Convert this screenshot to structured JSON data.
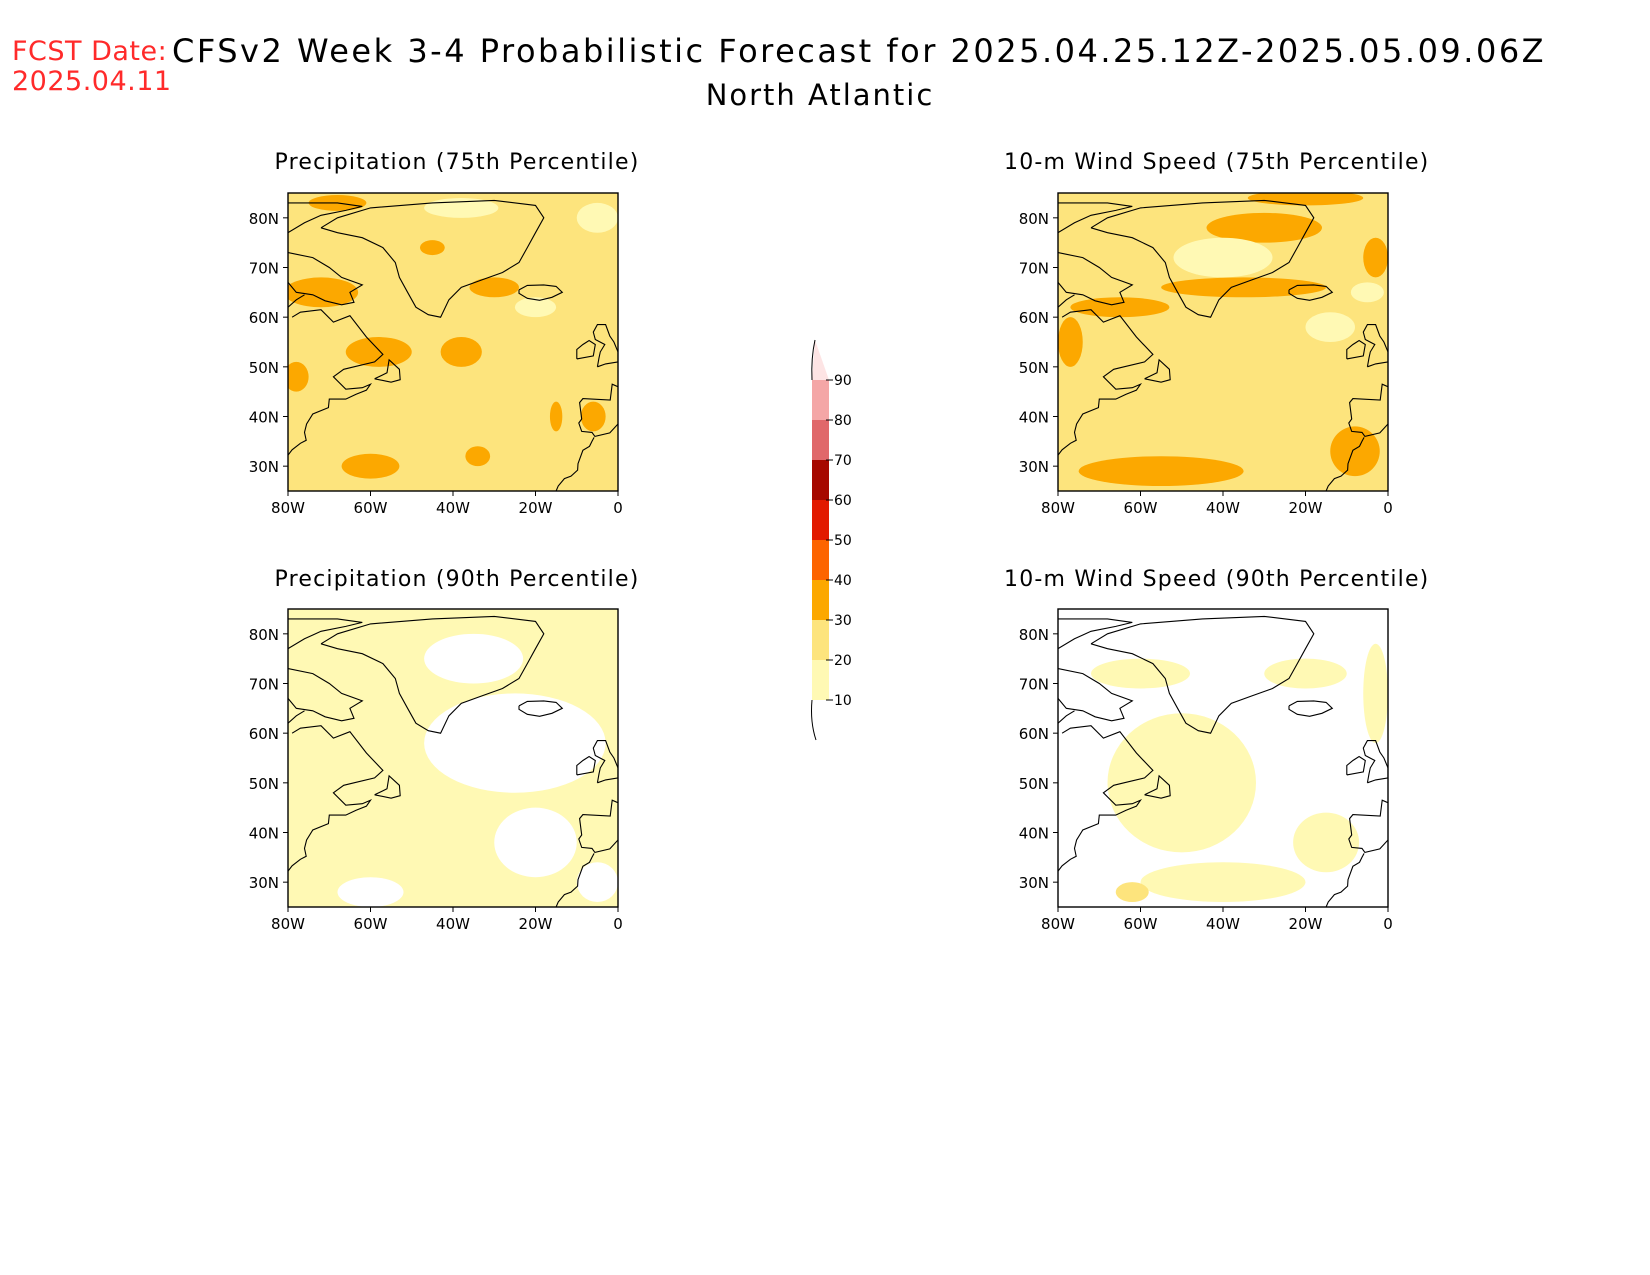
{
  "header": {
    "fcst_label": "FCST Date:",
    "fcst_date": "2025.04.11",
    "title": "CFSv2 Week 3-4 Probabilistic Forecast for 2025.04.25.12Z-2025.05.09.06Z",
    "region": "North Atlantic"
  },
  "panels": [
    {
      "title": "Precipitation (75th Percentile)",
      "base_level": 20,
      "blobs": [
        {
          "lon": -68,
          "lat": 83,
          "rx": 7,
          "ry": 1.6,
          "level": 30
        },
        {
          "lon": -72,
          "lat": 65,
          "rx": 9,
          "ry": 3,
          "level": 30
        },
        {
          "lon": -58,
          "lat": 53,
          "rx": 8,
          "ry": 3,
          "level": 30
        },
        {
          "lon": -38,
          "lat": 53,
          "rx": 5,
          "ry": 3,
          "level": 30
        },
        {
          "lon": -78,
          "lat": 48,
          "rx": 3,
          "ry": 3,
          "level": 30
        },
        {
          "lon": -60,
          "lat": 30,
          "rx": 7,
          "ry": 2.5,
          "level": 30
        },
        {
          "lon": -34,
          "lat": 32,
          "rx": 3,
          "ry": 2,
          "level": 30
        },
        {
          "lon": -45,
          "lat": 74,
          "rx": 3,
          "ry": 1.5,
          "level": 30
        },
        {
          "lon": -30,
          "lat": 66,
          "rx": 6,
          "ry": 2,
          "level": 30
        },
        {
          "lon": -15,
          "lat": 40,
          "rx": 1.5,
          "ry": 3,
          "level": 30
        },
        {
          "lon": -6,
          "lat": 40,
          "rx": 3,
          "ry": 3,
          "level": 30
        },
        {
          "lon": -38,
          "lat": 82,
          "rx": 9,
          "ry": 2,
          "level": 10
        },
        {
          "lon": -5,
          "lat": 80,
          "rx": 5,
          "ry": 3,
          "level": 10
        },
        {
          "lon": -20,
          "lat": 62,
          "rx": 5,
          "ry": 2,
          "level": 10
        }
      ]
    },
    {
      "title": "10-m Wind Speed (75th Percentile)",
      "base_level": 20,
      "blobs": [
        {
          "lon": -30,
          "lat": 78,
          "rx": 14,
          "ry": 3,
          "level": 30
        },
        {
          "lon": -35,
          "lat": 66,
          "rx": 20,
          "ry": 2,
          "level": 30
        },
        {
          "lon": -65,
          "lat": 62,
          "rx": 12,
          "ry": 2,
          "level": 30
        },
        {
          "lon": -55,
          "lat": 29,
          "rx": 20,
          "ry": 3,
          "level": 30
        },
        {
          "lon": -8,
          "lat": 33,
          "rx": 6,
          "ry": 5,
          "level": 30
        },
        {
          "lon": -3,
          "lat": 72,
          "rx": 3,
          "ry": 4,
          "level": 30
        },
        {
          "lon": -77,
          "lat": 55,
          "rx": 3,
          "ry": 5,
          "level": 30
        },
        {
          "lon": -20,
          "lat": 84,
          "rx": 14,
          "ry": 1.5,
          "level": 30
        },
        {
          "lon": -40,
          "lat": 72,
          "rx": 12,
          "ry": 4,
          "level": 10
        },
        {
          "lon": -14,
          "lat": 58,
          "rx": 6,
          "ry": 3,
          "level": 10
        },
        {
          "lon": -5,
          "lat": 65,
          "rx": 4,
          "ry": 2,
          "level": 10
        }
      ]
    },
    {
      "title": "Precipitation (90th Percentile)",
      "base_level": 10,
      "blobs": [
        {
          "lon": -25,
          "lat": 58,
          "rx": 22,
          "ry": 10,
          "level": 0
        },
        {
          "lon": -20,
          "lat": 38,
          "rx": 10,
          "ry": 7,
          "level": 0
        },
        {
          "lon": -35,
          "lat": 75,
          "rx": 12,
          "ry": 5,
          "level": 0
        },
        {
          "lon": -60,
          "lat": 28,
          "rx": 8,
          "ry": 3,
          "level": 0
        },
        {
          "lon": -5,
          "lat": 30,
          "rx": 5,
          "ry": 4,
          "level": 0
        }
      ]
    },
    {
      "title": "10-m Wind Speed (90th Percentile)",
      "base_level": 0,
      "blobs": [
        {
          "lon": -50,
          "lat": 50,
          "rx": 18,
          "ry": 14,
          "level": 10
        },
        {
          "lon": -40,
          "lat": 30,
          "rx": 20,
          "ry": 4,
          "level": 10
        },
        {
          "lon": -15,
          "lat": 38,
          "rx": 8,
          "ry": 6,
          "level": 10
        },
        {
          "lon": -20,
          "lat": 72,
          "rx": 10,
          "ry": 3,
          "level": 10
        },
        {
          "lon": -60,
          "lat": 72,
          "rx": 12,
          "ry": 3,
          "level": 10
        },
        {
          "lon": -3,
          "lat": 68,
          "rx": 3,
          "ry": 10,
          "level": 10
        },
        {
          "lon": -62,
          "lat": 28,
          "rx": 4,
          "ry": 2,
          "level": 20
        }
      ]
    }
  ],
  "axes": {
    "lon_ticks": [
      -80,
      -60,
      -40,
      -20,
      0
    ],
    "lon_labels": [
      "80W",
      "60W",
      "40W",
      "20W",
      "0"
    ],
    "lat_ticks": [
      30,
      40,
      50,
      60,
      70,
      80
    ],
    "lat_labels": [
      "30N",
      "40N",
      "50N",
      "60N",
      "70N",
      "80N"
    ],
    "lon_range": [
      -80,
      0
    ],
    "lat_range": [
      25,
      85
    ]
  },
  "colorbar": {
    "levels": [
      10,
      20,
      30,
      40,
      50,
      60,
      70,
      80,
      90
    ],
    "labels": [
      "10",
      "20",
      "30",
      "40",
      "50",
      "60",
      "70",
      "80",
      "90"
    ],
    "colors": [
      "#fff9b4",
      "#fde47d",
      "#fca800",
      "#fd6400",
      "#e21a00",
      "#a60800",
      "#e0686a",
      "#f4a6a6",
      "#fde4e4"
    ],
    "level_colors": {
      "0": "#ffffff",
      "10": "#fff9b4",
      "20": "#fde47d",
      "30": "#fca800"
    }
  }
}
